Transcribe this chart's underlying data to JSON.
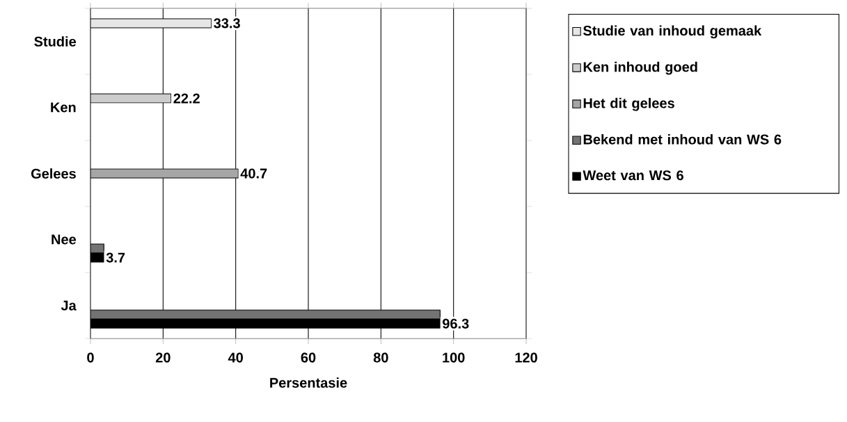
{
  "chart_data": {
    "type": "bar",
    "orientation": "horizontal",
    "xlabel": "Persentasie",
    "categories": [
      "Studie",
      "Ken",
      "Gelees",
      "Nee",
      "Ja"
    ],
    "series": [
      {
        "name": "Studie van inhoud gemaak",
        "color": "#e6e6e6",
        "values": [
          33.3,
          null,
          null,
          null,
          null
        ],
        "value_labels": [
          "33.3",
          null,
          null,
          null,
          null
        ]
      },
      {
        "name": "Ken inhoud goed",
        "color": "#cccccc",
        "values": [
          null,
          22.2,
          null,
          null,
          null
        ],
        "value_labels": [
          null,
          "22.2",
          null,
          null,
          null
        ]
      },
      {
        "name": "Het dit gelees",
        "color": "#a6a6a6",
        "values": [
          null,
          null,
          40.7,
          null,
          null
        ],
        "value_labels": [
          null,
          null,
          "40.7",
          null,
          null
        ]
      },
      {
        "name": "Bekend met inhoud van WS 6",
        "color": "#737373",
        "values": [
          null,
          null,
          null,
          3.7,
          96.3
        ]
      },
      {
        "name": "Weet van WS 6",
        "color": "#000000",
        "values": [
          null,
          null,
          null,
          3.7,
          96.3
        ],
        "value_labels": [
          null,
          null,
          null,
          "3.7",
          "96.3"
        ]
      }
    ],
    "xlim": [
      0,
      120
    ],
    "xticks": [
      0,
      20,
      40,
      60,
      80,
      100,
      120
    ],
    "grid": "x",
    "legend": "right"
  }
}
